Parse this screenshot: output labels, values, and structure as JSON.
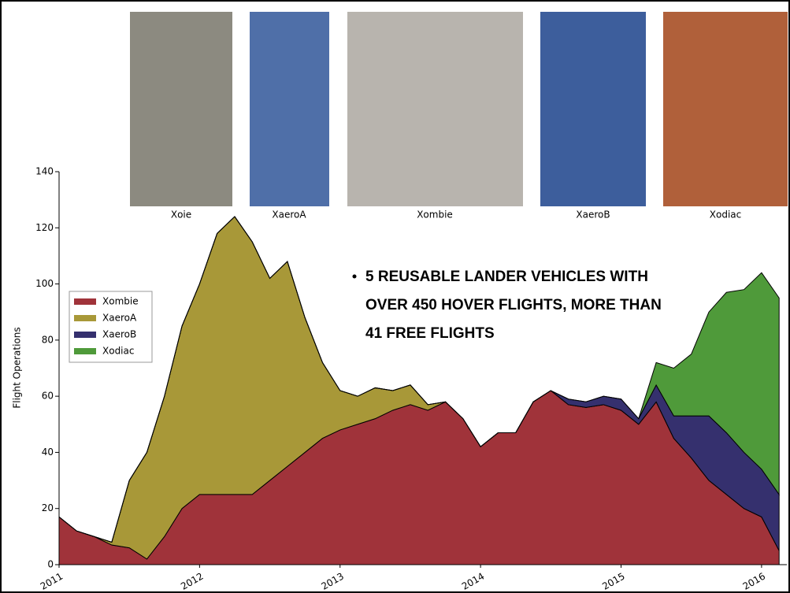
{
  "photos": [
    "Xoie",
    "XaeroA",
    "Xombie",
    "XaeroB",
    "Xodiac"
  ],
  "bullet_lines": [
    "5 REUSABLE LANDER VEHICLES WITH",
    "OVER 450 HOVER FLIGHTS, MORE THAN",
    "41 FREE FLIGHTS"
  ],
  "chart_data": {
    "type": "stacked-area",
    "y_label": "Flight Operations",
    "x": [
      2011,
      2011.125,
      2011.25,
      2011.375,
      2011.5,
      2011.625,
      2011.75,
      2011.875,
      2012,
      2012.125,
      2012.25,
      2012.375,
      2012.5,
      2012.625,
      2012.75,
      2012.875,
      2013,
      2013.125,
      2013.25,
      2013.375,
      2013.5,
      2013.625,
      2013.75,
      2013.875,
      2014,
      2014.125,
      2014.25,
      2014.375,
      2014.5,
      2014.625,
      2014.75,
      2014.875,
      2015,
      2015.125,
      2015.25,
      2015.375,
      2015.5,
      2015.625,
      2015.75,
      2015.875,
      2016,
      2016.125
    ],
    "series": [
      {
        "name": "Xombie",
        "color": "#a0333a",
        "values": [
          17,
          12,
          10,
          7,
          6,
          2,
          10,
          20,
          25,
          25,
          25,
          25,
          30,
          35,
          40,
          45,
          48,
          50,
          52,
          55,
          57,
          55,
          58,
          52,
          42,
          47,
          47,
          58,
          62,
          57,
          56,
          57,
          55,
          50,
          58,
          45,
          38,
          30,
          25,
          20,
          17,
          5
        ]
      },
      {
        "name": "XaeroA",
        "color": "#a89838",
        "values": [
          0,
          0,
          0,
          1,
          24,
          38,
          50,
          65,
          75,
          93,
          99,
          90,
          72,
          73,
          48,
          27,
          14,
          10,
          11,
          7,
          7,
          2,
          0,
          0,
          0,
          0,
          0,
          0,
          0,
          0,
          0,
          0,
          0,
          0,
          0,
          0,
          0,
          0,
          0,
          0,
          0,
          0
        ]
      },
      {
        "name": "XaeroB",
        "color": "#35306e",
        "values": [
          0,
          0,
          0,
          0,
          0,
          0,
          0,
          0,
          0,
          0,
          0,
          0,
          0,
          0,
          0,
          0,
          0,
          0,
          0,
          0,
          0,
          0,
          0,
          0,
          0,
          0,
          0,
          0,
          0,
          2,
          2,
          3,
          4,
          2,
          6,
          8,
          15,
          23,
          22,
          20,
          17,
          20
        ]
      },
      {
        "name": "Xodiac",
        "color": "#4f9a3a",
        "values": [
          0,
          0,
          0,
          0,
          0,
          0,
          0,
          0,
          0,
          0,
          0,
          0,
          0,
          0,
          0,
          0,
          0,
          0,
          0,
          0,
          0,
          0,
          0,
          0,
          0,
          0,
          0,
          0,
          0,
          0,
          0,
          0,
          0,
          0,
          8,
          17,
          22,
          37,
          50,
          58,
          70,
          70
        ]
      }
    ],
    "xlim": [
      2011,
      2016.18
    ],
    "xticks": [
      2011,
      2012,
      2013,
      2014,
      2015,
      2016
    ],
    "ylim": [
      0,
      140
    ],
    "yticks": [
      0,
      20,
      40,
      60,
      80,
      100,
      120,
      140
    ],
    "legend": "upper-left"
  }
}
